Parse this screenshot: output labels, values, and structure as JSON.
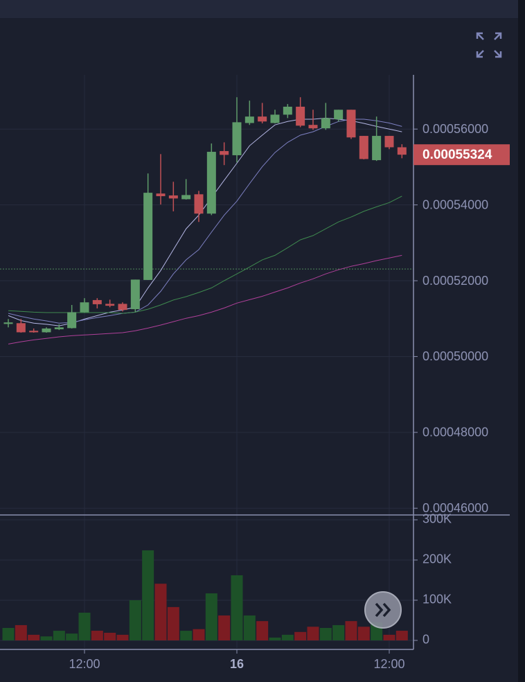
{
  "chart_data": {
    "type": "candlestick",
    "categories": [
      null,
      null,
      null,
      null,
      null,
      null,
      "12:00",
      null,
      null,
      null,
      null,
      null,
      null,
      null,
      null,
      null,
      null,
      null,
      "16",
      null,
      null,
      null,
      null,
      null,
      null,
      null,
      null,
      null,
      null,
      null,
      "12:00",
      null
    ],
    "open": [
      0.0005086,
      0.0005088,
      0.0005068,
      0.0005064,
      0.0005072,
      0.0005075,
      0.0005117,
      0.0005149,
      0.0005139,
      0.0005139,
      0.0005125,
      0.0005202,
      0.000543,
      0.0005425,
      0.0005415,
      0.0005428,
      0.0005377,
      0.0005542,
      0.0005531,
      0.0005616,
      0.0005633,
      0.0005616,
      0.0005638,
      0.0005659,
      0.0005611,
      0.0005602,
      0.0005626,
      0.0005651,
      0.0005582,
      0.0005518,
      0.0005582,
      0.0005552
    ],
    "high": [
      0.0005099,
      0.0005099,
      0.0005074,
      0.0005077,
      0.0005085,
      0.0005136,
      0.0005154,
      0.0005154,
      0.000515,
      0.0005143,
      0.0005203,
      0.0005483,
      0.0005534,
      0.0005461,
      0.0005468,
      0.0005437,
      0.0005562,
      0.0005565,
      0.0005684,
      0.0005675,
      0.0005669,
      0.0005651,
      0.0005666,
      0.0005684,
      0.0005651,
      0.0005669,
      0.0005651,
      0.0005651,
      0.0005582,
      0.0005633,
      0.0005582,
      0.000556
    ],
    "low": [
      0.0005077,
      0.0005063,
      0.0005063,
      0.0005063,
      0.000507,
      0.0005074,
      0.0005116,
      0.0005127,
      0.000513,
      0.0005119,
      0.0005117,
      0.0005202,
      0.0005401,
      0.0005383,
      0.0005414,
      0.0005355,
      0.0005373,
      0.0005505,
      0.0005512,
      0.0005611,
      0.0005615,
      0.0005615,
      0.0005629,
      0.0005605,
      0.0005598,
      0.0005598,
      0.000562,
      0.0005574,
      0.000552,
      0.0005516,
      0.0005547,
      0.0005523
    ],
    "close": [
      0.000509,
      0.0005064,
      0.0005064,
      0.0005074,
      0.0005077,
      0.0005117,
      0.0005143,
      0.0005138,
      0.0005134,
      0.0005123,
      0.0005203,
      0.0005432,
      0.0005423,
      0.0005417,
      0.0005426,
      0.0005377,
      0.000554,
      0.0005532,
      0.0005618,
      0.0005633,
      0.000562,
      0.0005638,
      0.0005659,
      0.0005609,
      0.0005602,
      0.0005629,
      0.0005651,
      0.0005578,
      0.0005521,
      0.0005582,
      0.0005552,
      0.00055324
    ],
    "last_price_label": "0.00055324",
    "up_color": "#5f9c6a",
    "down_color": "#c05055",
    "ylim": [
      0.0004584,
      0.0005743
    ],
    "yticks": [
      {
        "value": 0.00046,
        "label": "0.00046000"
      },
      {
        "value": 0.00048,
        "label": "0.00048000"
      },
      {
        "value": 0.0005,
        "label": "0.00050000"
      },
      {
        "value": 0.00052,
        "label": "0.00052000"
      },
      {
        "value": 0.00054,
        "label": "0.00054000"
      },
      {
        "value": 0.00056,
        "label": "0.00056000"
      }
    ],
    "grid": true,
    "reference_line": 0.0005231,
    "reference_color": "#4f8a5c",
    "moving_averages": [
      {
        "color": "#b4b6e4",
        "values": [
          0.0005108,
          0.0005095,
          0.0005088,
          0.0005085,
          0.0005081,
          0.0005088,
          0.0005099,
          0.0005108,
          0.0005117,
          0.0005123,
          0.000513,
          0.0005181,
          0.0005227,
          0.0005282,
          0.0005337,
          0.0005373,
          0.0005419,
          0.0005465,
          0.000551,
          0.0005556,
          0.0005584,
          0.0005611,
          0.000562,
          0.0005626,
          0.0005626,
          0.0005629,
          0.0005626,
          0.0005622,
          0.0005615,
          0.0005607,
          0.00056,
          0.0005593
        ]
      },
      {
        "color": "#7d80c2",
        "values": [
          0.0005114,
          0.0005106,
          0.0005099,
          0.0005094,
          0.0005088,
          0.000509,
          0.0005097,
          0.0005103,
          0.0005108,
          0.0005114,
          0.0005117,
          0.0005136,
          0.0005172,
          0.0005218,
          0.0005255,
          0.0005282,
          0.0005328,
          0.0005373,
          0.000541,
          0.0005456,
          0.0005501,
          0.0005538,
          0.0005565,
          0.0005584,
          0.0005593,
          0.0005607,
          0.000562,
          0.0005626,
          0.0005626,
          0.0005622,
          0.0005616,
          0.0005607
        ]
      },
      {
        "color": "#3f8a4f",
        "values": [
          0.0005121,
          0.0005119,
          0.0005117,
          0.0005116,
          0.0005116,
          0.0005116,
          0.0005116,
          0.0005116,
          0.0005116,
          0.0005114,
          0.0005117,
          0.0005125,
          0.0005136,
          0.0005149,
          0.0005158,
          0.0005169,
          0.0005181,
          0.00052,
          0.0005218,
          0.0005236,
          0.0005255,
          0.0005267,
          0.0005287,
          0.0005308,
          0.0005319,
          0.0005337,
          0.0005355,
          0.0005368,
          0.0005383,
          0.0005395,
          0.0005406,
          0.0005423
        ]
      },
      {
        "color": "#b0409a",
        "values": [
          0.0005033,
          0.0005039,
          0.0005044,
          0.0005048,
          0.0005052,
          0.0005055,
          0.0005057,
          0.0005059,
          0.0005061,
          0.0005063,
          0.0005068,
          0.0005075,
          0.0005083,
          0.0005092,
          0.0005101,
          0.0005108,
          0.0005117,
          0.0005128,
          0.0005141,
          0.000515,
          0.0005159,
          0.000517,
          0.0005181,
          0.0005194,
          0.0005205,
          0.0005218,
          0.0005229,
          0.0005238,
          0.0005245,
          0.0005253,
          0.000526,
          0.0005267
        ]
      }
    ],
    "volume": {
      "values": [
        31000,
        38000,
        14000,
        10000,
        24000,
        17000,
        69000,
        24000,
        19000,
        14000,
        100000,
        224000,
        141000,
        83000,
        24000,
        28000,
        117000,
        62000,
        162000,
        62000,
        48000,
        7000,
        14000,
        21000,
        34000,
        31000,
        38000,
        48000,
        34000,
        45000,
        14000,
        24000
      ],
      "up_color": "#1d5228",
      "down_color": "#7c1c22",
      "ylim": [
        -19000,
        308600
      ],
      "yticks": [
        0,
        {
          "value": 100000,
          "label": "100K"
        },
        {
          "value": 200000,
          "label": "200K"
        },
        {
          "value": 300000,
          "label": "300K"
        }
      ]
    }
  }
}
